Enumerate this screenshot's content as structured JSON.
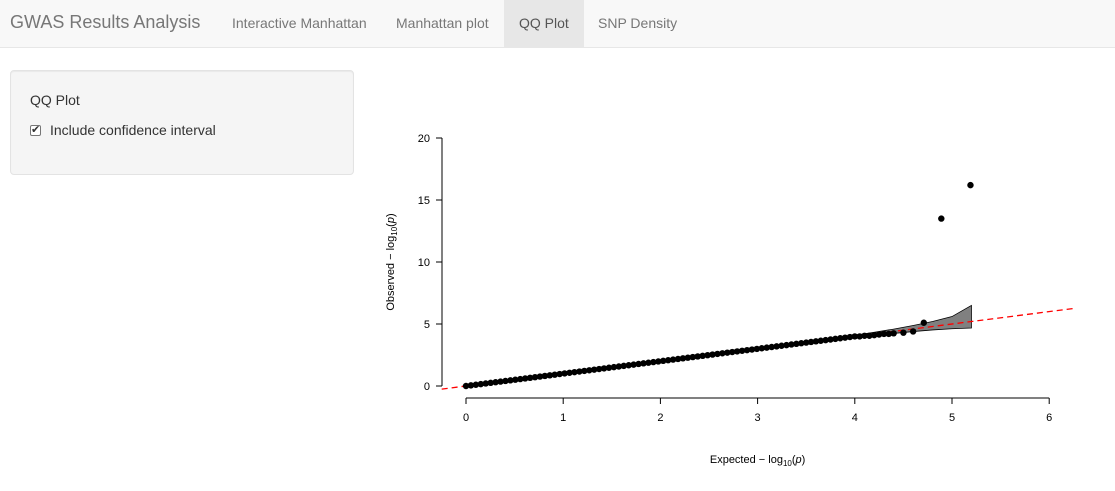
{
  "navbar": {
    "brand": "GWAS Results Analysis",
    "tabs": [
      {
        "label": "Interactive Manhattan",
        "active": false
      },
      {
        "label": "Manhattan plot",
        "active": false
      },
      {
        "label": "QQ Plot",
        "active": true
      },
      {
        "label": "SNP Density",
        "active": false
      }
    ]
  },
  "sidebar": {
    "title": "QQ Plot",
    "checkbox": {
      "label": "Include confidence interval",
      "checked": true
    }
  },
  "chart_data": {
    "type": "scatter",
    "title": "",
    "xlabel_prefix": "Expected",
    "ylabel_prefix": "Observed",
    "axis_expr_minus": "−",
    "axis_expr_log": "log",
    "axis_expr_sub": "10",
    "axis_expr_open": "(",
    "axis_expr_p": "p",
    "axis_expr_close": ")",
    "xlim": [
      0,
      6
    ],
    "ylim": [
      0,
      20
    ],
    "x_ticks": [
      "0",
      "1",
      "2",
      "3",
      "4",
      "5",
      "6"
    ],
    "y_ticks": [
      "0",
      "5",
      "10",
      "15",
      "20"
    ],
    "reference_line": {
      "slope": 1,
      "intercept": 0,
      "color": "#ff0000",
      "style": "dashed"
    },
    "confidence_band": {
      "x": [
        3.5,
        3.8,
        4.0,
        4.2,
        4.4,
        4.6,
        4.8,
        5.0,
        5.2
      ],
      "lower": [
        3.46,
        3.74,
        3.92,
        4.08,
        4.24,
        4.39,
        4.52,
        4.62,
        4.68
      ],
      "upper": [
        3.55,
        3.87,
        4.09,
        4.33,
        4.59,
        4.88,
        5.2,
        5.6,
        6.5
      ],
      "fill": "#808080"
    },
    "points_line": {
      "from": 0,
      "to": 3.5,
      "count": 70
    },
    "points_tail": {
      "x": [
        3.55,
        3.6,
        3.65,
        3.7,
        3.75,
        3.8,
        3.85,
        3.9,
        3.95,
        4.0,
        4.05,
        4.1,
        4.15,
        4.2,
        4.25,
        4.3,
        4.35,
        4.4,
        4.5,
        4.6,
        4.71,
        4.89,
        5.19
      ],
      "y": [
        3.55,
        3.6,
        3.65,
        3.7,
        3.75,
        3.8,
        3.85,
        3.9,
        3.95,
        4.0,
        4.0,
        4.05,
        4.05,
        4.1,
        4.15,
        4.2,
        4.2,
        4.25,
        4.3,
        4.4,
        5.1,
        13.5,
        16.2
      ]
    },
    "point_color": "#000000"
  }
}
